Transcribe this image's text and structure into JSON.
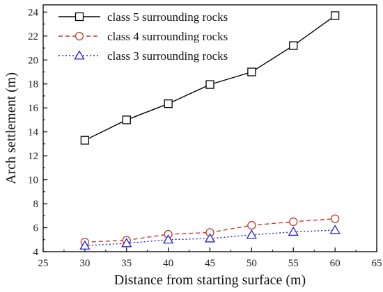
{
  "chart_data": {
    "type": "line",
    "xlabel": "Distance from starting surface (m)",
    "ylabel": "Arch settlement (m)",
    "xlim": [
      25,
      65
    ],
    "ylim": [
      4,
      24.6
    ],
    "xticks": [
      25,
      30,
      35,
      40,
      45,
      50,
      55,
      60,
      65
    ],
    "yticks": [
      4,
      6,
      8,
      10,
      12,
      14,
      16,
      18,
      20,
      22,
      24
    ],
    "x": [
      30,
      35,
      40,
      45,
      50,
      55,
      60
    ],
    "legend_position": "top-left",
    "grid": false,
    "series": [
      {
        "name": "class 5 surrounding rocks",
        "values": [
          13.3,
          15.0,
          16.35,
          17.95,
          19.0,
          21.2,
          23.7
        ],
        "color": "#000000",
        "marker": "square",
        "line_style": "solid"
      },
      {
        "name": "class 4 surrounding rocks",
        "values": [
          4.8,
          4.95,
          5.45,
          5.6,
          6.2,
          6.5,
          6.75
        ],
        "color": "#c0392b",
        "marker": "circle",
        "line_style": "dashed"
      },
      {
        "name": "class 3 surrounding rocks",
        "values": [
          4.5,
          4.7,
          5.0,
          5.1,
          5.4,
          5.65,
          5.8
        ],
        "color": "#2222cc",
        "marker": "triangle",
        "line_style": "dotted"
      }
    ]
  }
}
